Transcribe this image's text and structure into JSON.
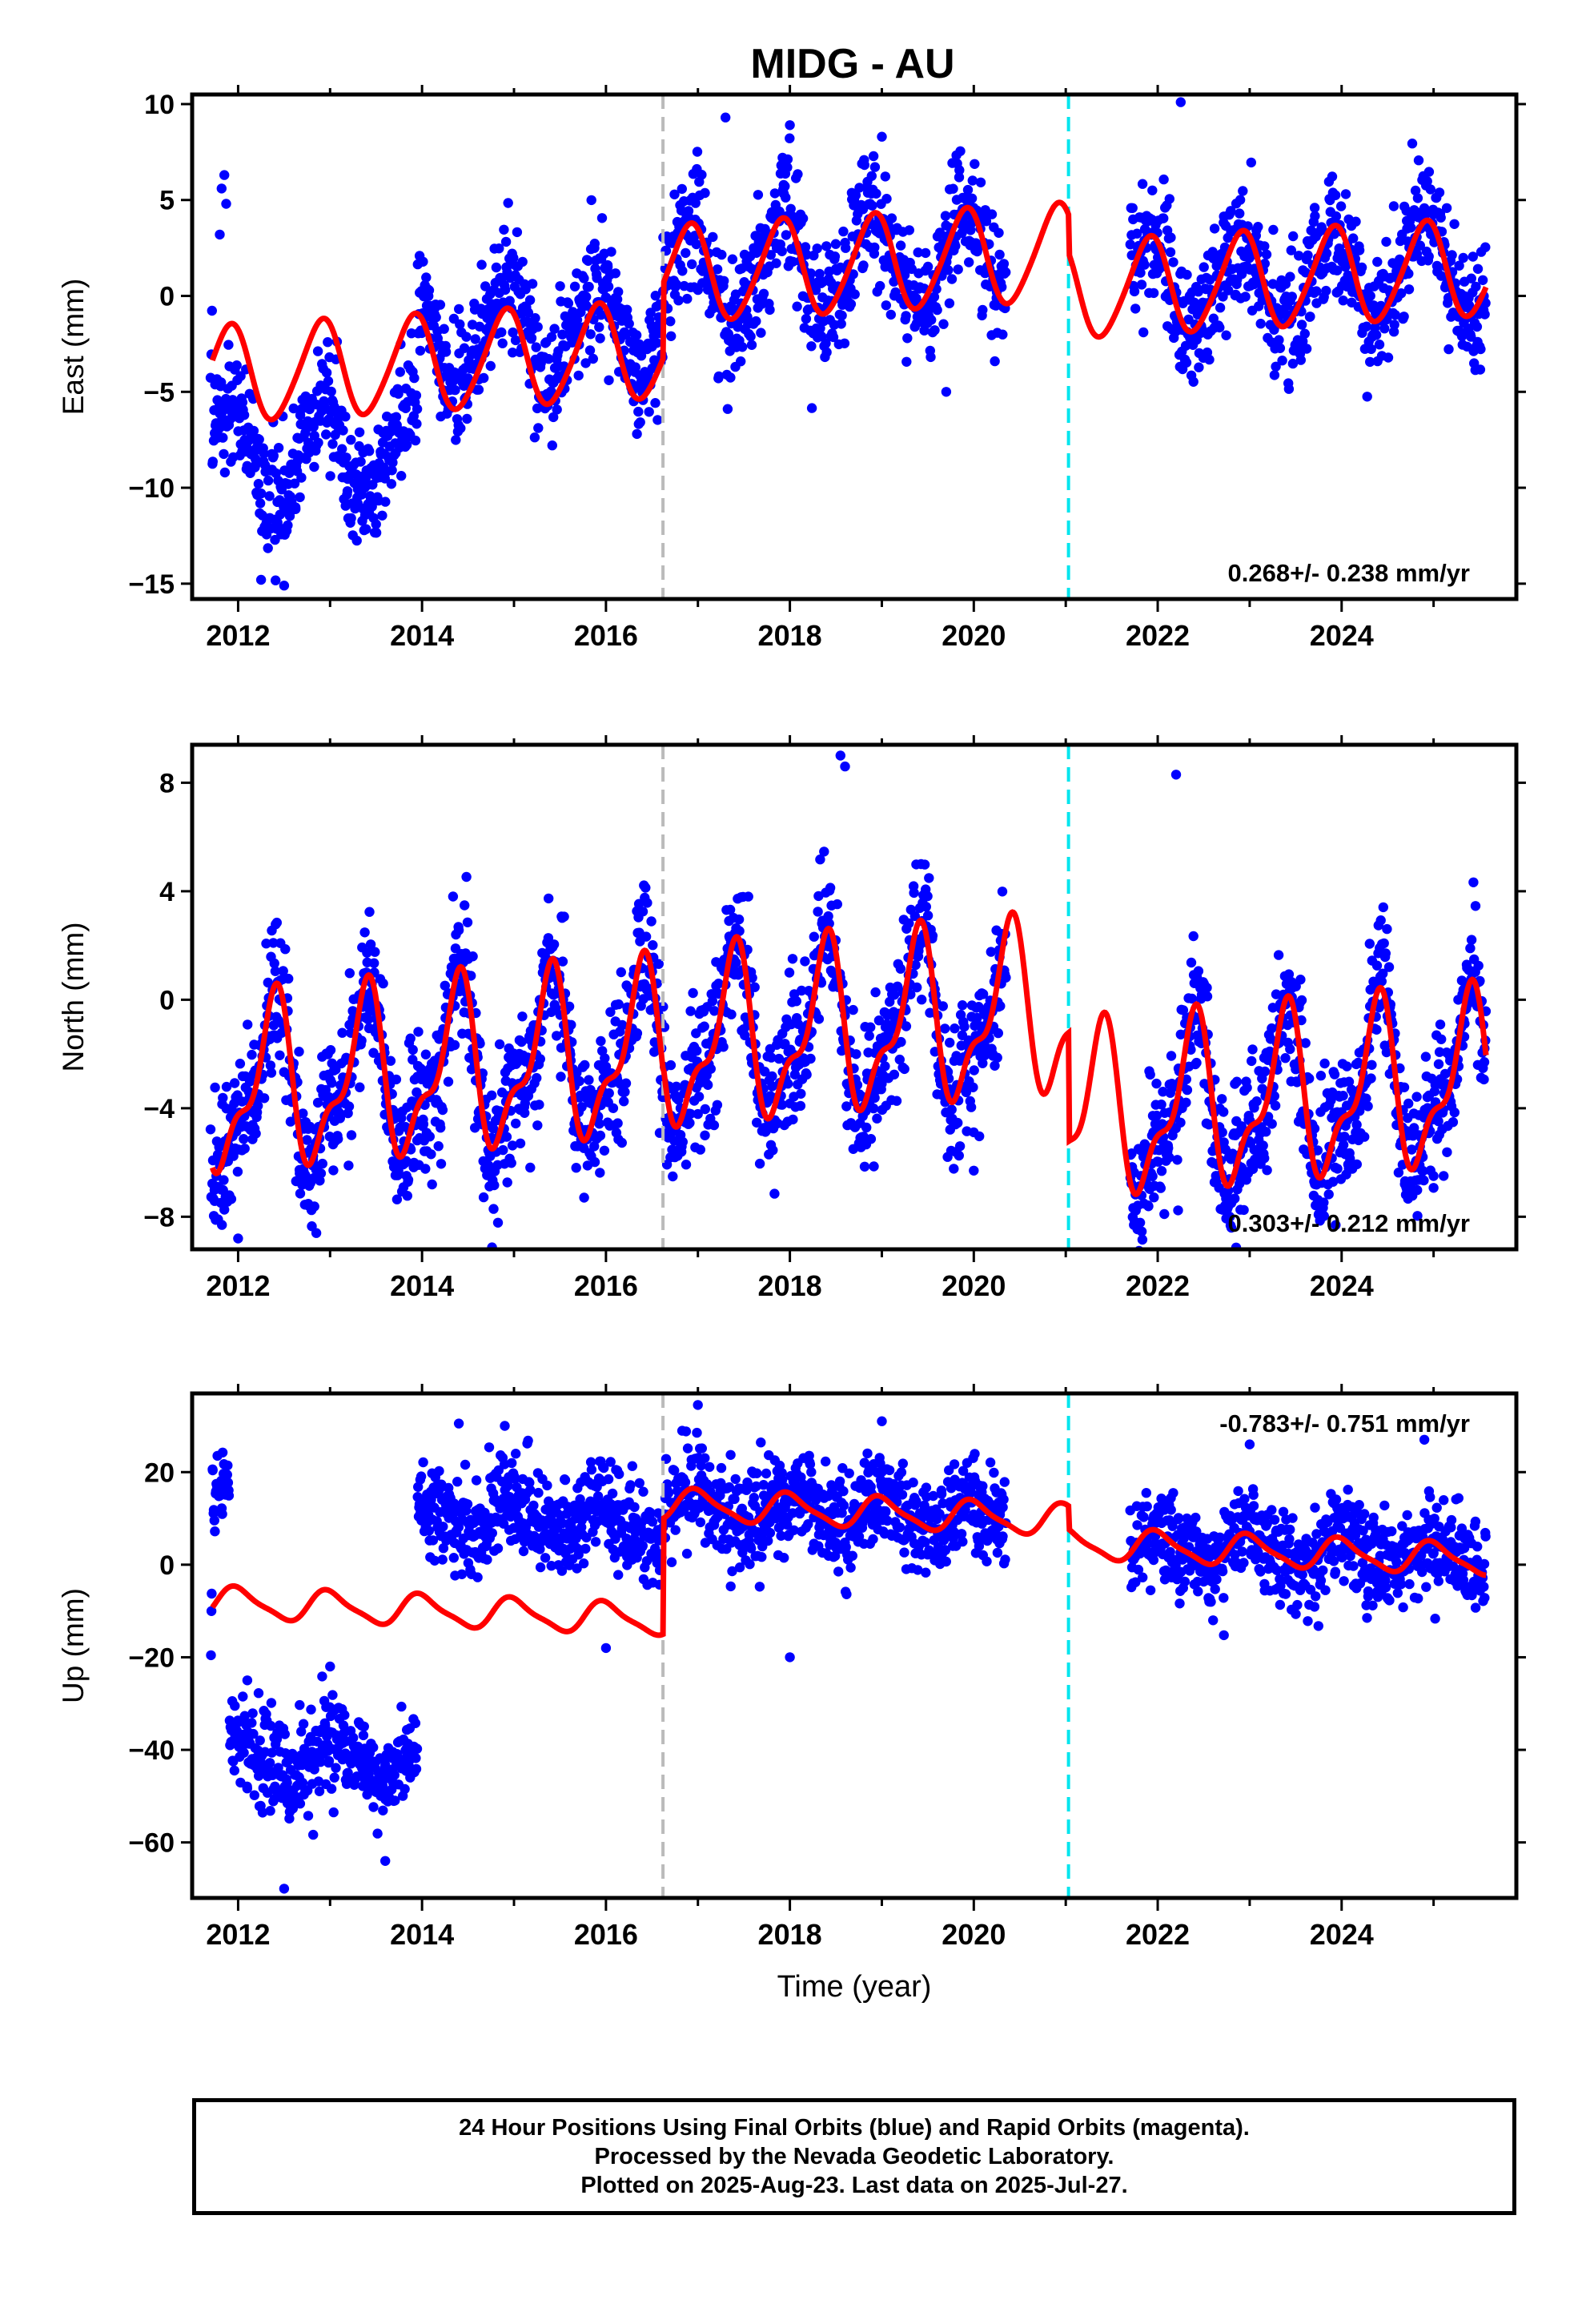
{
  "title": "MIDG - AU",
  "footer": {
    "line1": "24 Hour Positions Using Final Orbits (blue) and Rapid Orbits (magenta).",
    "line2": "Processed by the Nevada Geodetic Laboratory.",
    "line3": "Plotted on 2025-Aug-23. Last data on 2025-Jul-27."
  },
  "colors": {
    "points": "#0000ff",
    "model": "#ff0000",
    "break_gray": "#bbbbbb",
    "break_cyan": "#00e5ee"
  },
  "chart_data": [
    {
      "type": "scatter",
      "component": "east",
      "ylabel": "East (mm)",
      "xlabel": "",
      "xlim": [
        2011.5,
        2025.9
      ],
      "ylim": [
        -15.8,
        10.5
      ],
      "yticks": [
        -15,
        -10,
        -5,
        0,
        5,
        10
      ],
      "ytick_labels": [
        "−15",
        "−10",
        "−5",
        "0",
        "5",
        "10"
      ],
      "xticks": [
        2012,
        2014,
        2016,
        2018,
        2020,
        2022,
        2024
      ],
      "xtick_labels": [
        "2012",
        "2014",
        "2016",
        "2018",
        "2020",
        "2022",
        "2024"
      ],
      "rate_text": "0.268+/- 0.238 mm/yr",
      "rate_position": "bottom-right",
      "breaks": [
        2016.62,
        2021.03
      ],
      "data_segments": [
        [
          2011.7,
          2013.95
        ],
        [
          2013.95,
          2020.35
        ],
        [
          2021.7,
          2025.57
        ]
      ],
      "model": {
        "segments": [
          [
            2011.72,
            2016.62,
            0.0
          ],
          [
            2016.62,
            2021.03,
            3.9
          ],
          [
            2021.03,
            2025.57,
            1.9
          ]
        ],
        "base": -2.3,
        "rate": 0.268,
        "annual": 2.5,
        "annual_phase": 0.9,
        "semiannual": 0.3,
        "semi_phase": 0.5
      },
      "points_model": {
        "segments": [
          [
            2011.72,
            2013.95,
            -4.2
          ],
          [
            2013.95,
            2016.62,
            1.3
          ],
          [
            2016.62,
            2021.03,
            3.9
          ],
          [
            2021.03,
            2025.57,
            1.9
          ]
        ],
        "outliers": [
          [
            2011.85,
            6.3
          ],
          [
            2011.82,
            5.6
          ],
          [
            2011.87,
            4.8
          ],
          [
            2011.8,
            3.2
          ],
          [
            2012.25,
            -14.8
          ],
          [
            2012.5,
            -15.1
          ],
          [
            2013.3,
            -10.8
          ],
          [
            2013.5,
            -11.9
          ],
          [
            2017.3,
            9.3
          ],
          [
            2018.0,
            8.9
          ],
          [
            2022.25,
            10.1
          ],
          [
            2019.0,
            8.3
          ],
          [
            2019.7,
            -5.0
          ]
        ],
        "noise": 1.6,
        "n": 2100
      }
    },
    {
      "type": "scatter",
      "component": "north",
      "ylabel": "North (mm)",
      "xlabel": "",
      "xlim": [
        2011.5,
        2025.9
      ],
      "ylim": [
        -9.2,
        9.4
      ],
      "yticks": [
        -8,
        -4,
        0,
        4,
        8
      ],
      "ytick_labels": [
        "−8",
        "−4",
        "0",
        "4",
        "8"
      ],
      "xticks": [
        2012,
        2014,
        2016,
        2018,
        2020,
        2022,
        2024
      ],
      "xtick_labels": [
        "2012",
        "2014",
        "2016",
        "2018",
        "2020",
        "2022",
        "2024"
      ],
      "rate_text": "0.303+/- 0.212 mm/yr",
      "rate_position": "bottom-right",
      "breaks": [
        2016.62,
        2021.03
      ],
      "data_segments": [
        [
          2011.7,
          2020.35
        ],
        [
          2021.7,
          2025.57
        ]
      ],
      "model": {
        "segments": [
          [
            2011.72,
            2016.62,
            0.0
          ],
          [
            2016.62,
            2021.03,
            0.2
          ],
          [
            2021.03,
            2025.57,
            -3.8
          ]
        ],
        "base": -1.3,
        "rate": 0.303,
        "annual": 2.8,
        "annual_phase": 0.37,
        "semiannual": 1.2,
        "semi_phase": 0.45
      },
      "points_model": {
        "segments": [
          [
            2011.72,
            2016.62,
            0.0
          ],
          [
            2016.62,
            2021.03,
            0.2
          ],
          [
            2021.03,
            2025.57,
            -3.8
          ]
        ],
        "outliers": [
          [
            2018.55,
            9.0
          ],
          [
            2018.6,
            8.6
          ],
          [
            2020.0,
            -6.3
          ],
          [
            2022.2,
            8.3
          ],
          [
            2022.8,
            -7.5
          ],
          [
            2025.0,
            -6.5
          ],
          [
            2012.0,
            -8.8
          ],
          [
            2012.85,
            -8.6
          ]
        ],
        "noise": 1.3,
        "n": 2300
      }
    },
    {
      "type": "scatter",
      "component": "up",
      "ylabel": "Up (mm)",
      "xlabel": "Time (year)",
      "xlim": [
        2011.5,
        2025.9
      ],
      "ylim": [
        -72,
        37
      ],
      "yticks": [
        -60,
        -40,
        -20,
        0,
        20
      ],
      "ytick_labels": [
        "−60",
        "−40",
        "−20",
        "0",
        "20"
      ],
      "xticks": [
        2012,
        2014,
        2016,
        2018,
        2020,
        2022,
        2024
      ],
      "xtick_labels": [
        "2012",
        "2014",
        "2016",
        "2018",
        "2020",
        "2022",
        "2024"
      ],
      "rate_text": "-0.783+/- 0.751 mm/yr",
      "rate_position": "top-right",
      "breaks": [
        2016.62,
        2021.03
      ],
      "data_segments": [
        [
          2011.7,
          2020.35
        ],
        [
          2021.7,
          2025.57
        ]
      ],
      "model": {
        "segments": [
          [
            2011.72,
            2016.62,
            0.0
          ],
          [
            2016.62,
            2021.03,
            25.0
          ],
          [
            2021.03,
            2025.57,
            20.0
          ]
        ],
        "base": -13.5,
        "rate": -0.783,
        "annual": 3.2,
        "annual_phase": 0.0,
        "semiannual": 0.8,
        "semi_phase": 0.4
      },
      "points_model": {
        "segments": [
          [
            2011.72,
            2011.9,
            23.0
          ],
          [
            2011.9,
            2013.95,
            -33.0
          ],
          [
            2013.95,
            2016.62,
            21.0
          ],
          [
            2016.62,
            2021.03,
            25.0
          ],
          [
            2021.03,
            2025.57,
            20.0
          ]
        ],
        "outliers": [
          [
            2012.1,
            -25.0
          ],
          [
            2012.5,
            -70.0
          ],
          [
            2013.0,
            -22.0
          ],
          [
            2013.6,
            -64.0
          ],
          [
            2017.0,
            34.5
          ],
          [
            2018.0,
            -20.0
          ],
          [
            2019.0,
            31.0
          ],
          [
            2014.4,
            30.5
          ],
          [
            2014.9,
            30.0
          ],
          [
            2016.0,
            -18.0
          ],
          [
            2023.0,
            26.0
          ],
          [
            2024.9,
            27.0
          ]
        ],
        "noise": 5.2,
        "n": 2200
      }
    }
  ]
}
